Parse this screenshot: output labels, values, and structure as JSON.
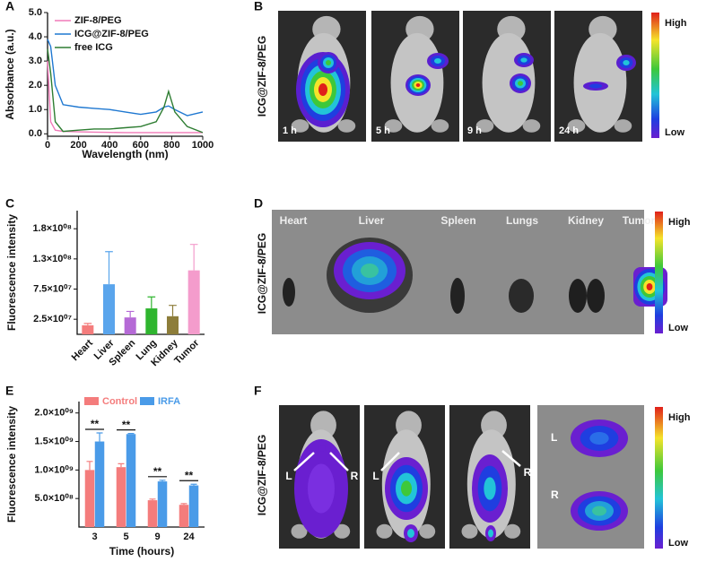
{
  "chart_data": [
    {
      "type": "line",
      "xlabel": "Wavelength (nm)",
      "ylabel": "Absorbance (a.u.)",
      "x": [
        0,
        20,
        50,
        100,
        200,
        300,
        400,
        500,
        600,
        700,
        750,
        780,
        820,
        900,
        1000
      ],
      "series": [
        {
          "name": "ZIF-8/PEG",
          "color": "#f07ab8",
          "values": [
            3.0,
            0.5,
            0.15,
            0.1,
            0.08,
            0.07,
            0.06,
            0.05,
            0.05,
            0.05,
            0.05,
            0.05,
            0.05,
            0.05,
            0.05
          ]
        },
        {
          "name": "ICG@ZIF-8/PEG",
          "color": "#1f78d1",
          "values": [
            3.9,
            3.6,
            2.0,
            1.2,
            1.1,
            1.05,
            1.0,
            0.9,
            0.8,
            0.9,
            1.1,
            1.15,
            1.0,
            0.75,
            0.9
          ]
        },
        {
          "name": "free ICG",
          "color": "#2e7d32",
          "values": [
            3.5,
            2.5,
            0.5,
            0.1,
            0.15,
            0.2,
            0.2,
            0.25,
            0.3,
            0.5,
            1.1,
            1.75,
            0.9,
            0.3,
            0.05
          ]
        }
      ],
      "xlim": [
        0,
        1000
      ],
      "xticks": [
        0,
        200,
        400,
        600,
        800,
        1000
      ],
      "ylim": [
        -0.1,
        5.0
      ],
      "yticks": [
        {
          "value": 0,
          "label": "0.0"
        },
        {
          "value": 1,
          "label": "1.0"
        },
        {
          "value": 2,
          "label": "2.0"
        },
        {
          "value": 3,
          "label": "3.0"
        },
        {
          "value": 4,
          "label": "4.0"
        },
        {
          "value": 5,
          "label": "5.0"
        }
      ],
      "legend": "upper right"
    },
    {
      "type": "bar",
      "ylabel": "Fluorescence intensity",
      "categories": [
        "Heart",
        "Liver",
        "Spleen",
        "Lung",
        "Kidney",
        "Tumor"
      ],
      "values": [
        15000000,
        83000000,
        28000000,
        43000000,
        30000000,
        106000000
      ],
      "errors": [
        3000000,
        54000000,
        10000000,
        19000000,
        18000000,
        43000000
      ],
      "colors": [
        "#f47c7c",
        "#5aa5ec",
        "#b56ad6",
        "#2fb52f",
        "#8d7d3a",
        "#f49ccc"
      ],
      "ylim": [
        0,
        205000000
      ],
      "yticks": [
        {
          "value": 25000000,
          "label": "2.5×10⁰⁷"
        },
        {
          "value": 75000000,
          "label": "7.5×10⁰⁷"
        },
        {
          "value": 125000000,
          "label": "1.3×10⁰⁸"
        },
        {
          "value": 175000000,
          "label": "1.8×10⁰⁸"
        }
      ]
    },
    {
      "type": "bar",
      "xlabel": "Time (hours)",
      "ylabel": "Fluorescence intensity",
      "categories": [
        "3",
        "5",
        "9",
        "24"
      ],
      "series": [
        {
          "name": "Control",
          "color": "#f47c7c",
          "values": [
            1000000000,
            1050000000,
            470000000,
            390000000
          ],
          "errors": [
            150000000,
            60000000,
            20000000,
            20000000
          ]
        },
        {
          "name": "IRFA",
          "color": "#4a9be8",
          "values": [
            1500000000,
            1630000000,
            800000000,
            730000000
          ],
          "errors": [
            150000000,
            10000000,
            20000000,
            20000000
          ]
        }
      ],
      "annotations": [
        "**",
        "**",
        "**",
        "**"
      ],
      "ylim": [
        0,
        2200000000
      ],
      "yticks": [
        {
          "value": 500000000,
          "label": "5.0×10⁰⁸"
        },
        {
          "value": 1000000000,
          "label": "1.0×10⁰⁹"
        },
        {
          "value": 1500000000,
          "label": "1.5×10⁰⁹"
        },
        {
          "value": 2000000000,
          "label": "2.0×10⁰⁹"
        }
      ],
      "legend": "top"
    }
  ],
  "panels": {
    "letters": [
      "A",
      "B",
      "C",
      "D",
      "E",
      "F"
    ],
    "B": {
      "ylabel": "ICG@ZIF-8/PEG",
      "times": [
        "1 h",
        "5 h",
        "9 h",
        "24 h"
      ],
      "high": "High",
      "low": "Low"
    },
    "D": {
      "ylabel": "ICG@ZIF-8/PEG",
      "organs": [
        "Heart",
        "Liver",
        "Spleen",
        "Lungs",
        "Kidney",
        "Tumor"
      ],
      "high": "High",
      "low": "Low"
    },
    "F": {
      "ylabel": "ICG@ZIF-8/PEG",
      "labels": [
        "L",
        "R",
        "L",
        "R",
        "L",
        "R"
      ],
      "high": "High",
      "low": "Low"
    }
  }
}
